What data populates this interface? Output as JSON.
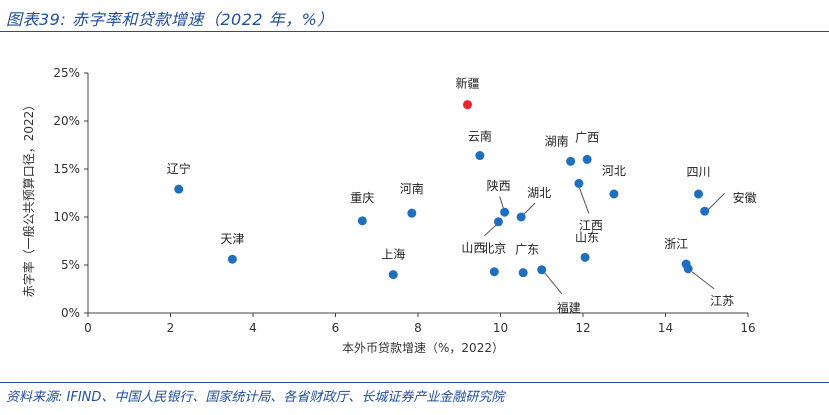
{
  "header": {
    "title": "图表39:  赤字率和贷款增速（2022 年，%）"
  },
  "footer": {
    "source": "资料来源: IFIND、中国人民银行、国家统计局、各省财政厅、长城证券产业金融研究院"
  },
  "colors": {
    "point": "#1f6fbf",
    "highlight": "#e8262b",
    "frame": "#1f4e9c"
  },
  "chart_data": {
    "type": "scatter",
    "xlabel": "本外币贷款增速（%，2022）",
    "ylabel": "赤字率（一般公共预算口径，2022）",
    "xlim": [
      0,
      16
    ],
    "ylim": [
      0,
      25
    ],
    "x_ticks": [
      "0",
      "2",
      "4",
      "6",
      "8",
      "10",
      "12",
      "14",
      "16"
    ],
    "y_ticks": [
      "0%",
      "5%",
      "10%",
      "15%",
      "20%",
      "25%"
    ],
    "grid": false,
    "points": [
      {
        "name": "新疆",
        "x": 9.2,
        "y": 21.7,
        "highlight": true
      },
      {
        "name": "云南",
        "x": 9.5,
        "y": 16.4
      },
      {
        "name": "湖南",
        "x": 11.7,
        "y": 15.8
      },
      {
        "name": "广西",
        "x": 12.1,
        "y": 16.0
      },
      {
        "name": "辽宁",
        "x": 2.2,
        "y": 12.9
      },
      {
        "name": "重庆",
        "x": 6.65,
        "y": 9.6
      },
      {
        "name": "河南",
        "x": 7.85,
        "y": 10.4
      },
      {
        "name": "陕西",
        "x": 10.1,
        "y": 10.5
      },
      {
        "name": "湖北",
        "x": 10.5,
        "y": 10.0
      },
      {
        "name": "山西",
        "x": 9.95,
        "y": 9.5
      },
      {
        "name": "江西",
        "x": 11.9,
        "y": 13.5
      },
      {
        "name": "河北",
        "x": 12.75,
        "y": 12.4
      },
      {
        "name": "四川",
        "x": 14.8,
        "y": 12.4
      },
      {
        "name": "安徽",
        "x": 14.95,
        "y": 10.6
      },
      {
        "name": "天津",
        "x": 3.5,
        "y": 5.6
      },
      {
        "name": "上海",
        "x": 7.4,
        "y": 4.0
      },
      {
        "name": "北京",
        "x": 9.85,
        "y": 4.3
      },
      {
        "name": "广东",
        "x": 10.55,
        "y": 4.2
      },
      {
        "name": "福建",
        "x": 11.0,
        "y": 4.5
      },
      {
        "name": "山东",
        "x": 12.05,
        "y": 5.8
      },
      {
        "name": "浙江",
        "x": 14.5,
        "y": 5.1
      },
      {
        "name": "江苏",
        "x": 14.55,
        "y": 4.6
      }
    ]
  }
}
